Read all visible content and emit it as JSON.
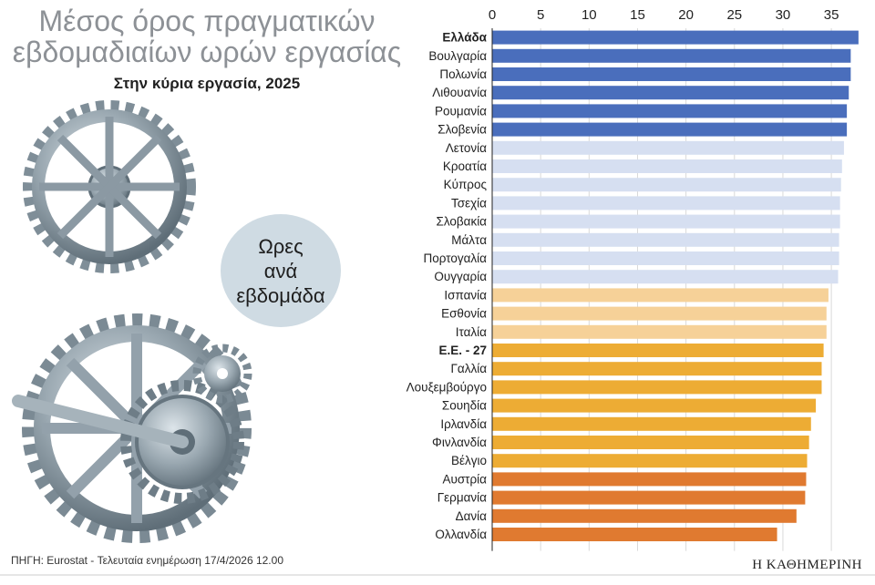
{
  "header": {
    "title_line1": "Μέσος όρος πραγματικών",
    "title_line2": "εβδομαδιαίων ωρών εργασίας",
    "subtitle": "Στην κύρια εργασία, 2025"
  },
  "badge": {
    "line1": "Ωρες",
    "line2": "ανά",
    "line3": "εβδομάδα"
  },
  "footer": {
    "source": "ΠΗΓΗ: Eurostat - Τελευταία ενημέρωση 17/4/2026 12.00",
    "brand": "Η ΚΑΘΗΜΕΡΙΝΗ"
  },
  "colors": {
    "dark_blue": "#4a6ebc",
    "light_blue": "#d6dff1",
    "light_orange": "#f6d198",
    "orange": "#edac34",
    "dark_orange": "#e07a30",
    "grid": "#d9d9d9"
  },
  "chart_data": {
    "type": "bar",
    "orientation": "horizontal",
    "xlim": [
      0,
      38
    ],
    "xticks": [
      0,
      5,
      10,
      15,
      20,
      25,
      30,
      35
    ],
    "grid": true,
    "highlight": [
      "Ελλάδα",
      "Ε.Ε. - 27"
    ],
    "categories": [
      "Ελλάδα",
      "Βουλγαρία",
      "Πολωνία",
      "Λιθουανία",
      "Ρουμανία",
      "Σλοβενία",
      "Λετονία",
      "Κροατία",
      "Κύπρος",
      "Τσεχία",
      "Σλοβακία",
      "Μάλτα",
      "Πορτογαλία",
      "Ουγγαρία",
      "Ισπανία",
      "Εσθονία",
      "Ιταλία",
      "Ε.Ε. - 27",
      "Γαλλία",
      "Λουξεμβούργο",
      "Σουηδία",
      "Ιρλανδία",
      "Φινλανδία",
      "Βέλγιο",
      "Αυστρία",
      "Γερμανία",
      "Δανία",
      "Ολλανδία"
    ],
    "values": [
      37.8,
      37.0,
      37.0,
      36.8,
      36.6,
      36.6,
      36.3,
      36.1,
      36.0,
      35.9,
      35.9,
      35.8,
      35.8,
      35.7,
      34.7,
      34.5,
      34.5,
      34.2,
      34.0,
      34.0,
      33.4,
      32.9,
      32.7,
      32.5,
      32.4,
      32.3,
      31.4,
      29.4
    ],
    "color_groups": [
      "dark_blue",
      "dark_blue",
      "dark_blue",
      "dark_blue",
      "dark_blue",
      "dark_blue",
      "light_blue",
      "light_blue",
      "light_blue",
      "light_blue",
      "light_blue",
      "light_blue",
      "light_blue",
      "light_blue",
      "light_orange",
      "light_orange",
      "light_orange",
      "orange",
      "orange",
      "orange",
      "orange",
      "orange",
      "orange",
      "orange",
      "dark_orange",
      "dark_orange",
      "dark_orange",
      "dark_orange"
    ]
  }
}
